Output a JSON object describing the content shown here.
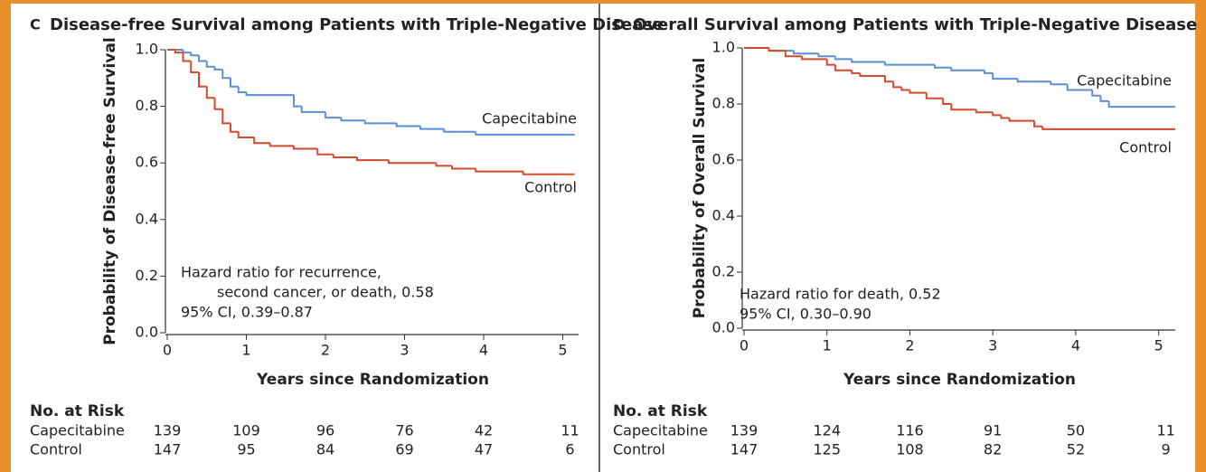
{
  "chart_data": [
    {
      "type": "step",
      "panel": "C",
      "title": "Disease-free Survival among Patients with Triple-Negative Disease",
      "xlabel": "Years since Randomization",
      "ylabel": "Probability of Disease-free Survival",
      "xlim": [
        0,
        5.2
      ],
      "ylim": [
        0,
        1
      ],
      "xticks": [
        0,
        1,
        2,
        3,
        4,
        5
      ],
      "yticks": [
        {
          "value": 0,
          "label": "0.0"
        },
        0.2,
        0.4,
        0.6,
        0.8,
        {
          "value": 1,
          "label": "1.0"
        }
      ],
      "series": [
        {
          "name": "Capecitabine",
          "color": "#5b8fd6",
          "x": [
            0,
            0.2,
            0.3,
            0.4,
            0.5,
            0.6,
            0.7,
            0.8,
            0.9,
            1.0,
            1.6,
            1.7,
            2.0,
            2.2,
            2.5,
            2.9,
            3.2,
            3.5,
            3.9,
            5.15
          ],
          "values": [
            1.0,
            0.99,
            0.98,
            0.96,
            0.94,
            0.93,
            0.9,
            0.87,
            0.85,
            0.84,
            0.8,
            0.78,
            0.76,
            0.75,
            0.74,
            0.73,
            0.72,
            0.71,
            0.7,
            0.7
          ]
        },
        {
          "name": "Control",
          "color": "#d44a2e",
          "x": [
            0,
            0.1,
            0.2,
            0.3,
            0.4,
            0.5,
            0.6,
            0.7,
            0.8,
            0.9,
            1.1,
            1.3,
            1.6,
            1.9,
            2.1,
            2.4,
            2.8,
            3.4,
            3.6,
            3.9,
            4.5,
            5.15
          ],
          "values": [
            1.0,
            0.99,
            0.96,
            0.92,
            0.87,
            0.83,
            0.79,
            0.74,
            0.71,
            0.69,
            0.67,
            0.66,
            0.65,
            0.63,
            0.62,
            0.61,
            0.6,
            0.59,
            0.58,
            0.57,
            0.56,
            0.56
          ]
        }
      ],
      "annotation": [
        "Hazard ratio for recurrence,",
        "second cancer, or death, 0.58",
        "95% CI, 0.39–0.87"
      ],
      "risk_table": {
        "title": "No. at Risk",
        "rows": [
          {
            "name": "Capecitabine",
            "values": [
              139,
              109,
              96,
              76,
              42,
              11
            ]
          },
          {
            "name": "Control",
            "values": [
              147,
              95,
              84,
              69,
              47,
              6
            ]
          }
        ]
      }
    },
    {
      "type": "step",
      "panel": "D",
      "title": "Overall Survival among Patients with Triple-Negative Disease",
      "xlabel": "Years since Randomization",
      "ylabel": "Probability of Overall Survival",
      "xlim": [
        0,
        5.2
      ],
      "ylim": [
        0,
        1
      ],
      "xticks": [
        0,
        1,
        2,
        3,
        4,
        5
      ],
      "yticks": [
        {
          "value": 0,
          "label": "0.0"
        },
        0.2,
        0.4,
        0.6,
        0.8,
        {
          "value": 1,
          "label": "1.0"
        }
      ],
      "series": [
        {
          "name": "Capecitabine",
          "color": "#5b8fd6",
          "x": [
            0,
            0.3,
            0.6,
            0.9,
            1.1,
            1.3,
            1.7,
            2.3,
            2.5,
            2.9,
            3.0,
            3.3,
            3.7,
            3.9,
            4.2,
            4.3,
            4.4,
            5.2
          ],
          "values": [
            1.0,
            0.99,
            0.98,
            0.97,
            0.96,
            0.95,
            0.94,
            0.93,
            0.92,
            0.91,
            0.89,
            0.88,
            0.87,
            0.85,
            0.83,
            0.81,
            0.79,
            0.79
          ]
        },
        {
          "name": "Control",
          "color": "#d44a2e",
          "x": [
            0,
            0.3,
            0.5,
            0.7,
            1.0,
            1.1,
            1.3,
            1.4,
            1.7,
            1.8,
            1.9,
            2.0,
            2.2,
            2.4,
            2.5,
            2.8,
            3.0,
            3.1,
            3.2,
            3.5,
            3.6,
            5.2
          ],
          "values": [
            1.0,
            0.99,
            0.97,
            0.96,
            0.94,
            0.92,
            0.91,
            0.9,
            0.88,
            0.86,
            0.85,
            0.84,
            0.82,
            0.8,
            0.78,
            0.77,
            0.76,
            0.75,
            0.74,
            0.72,
            0.71,
            0.71
          ]
        }
      ],
      "annotation": [
        "Hazard ratio for death, 0.52",
        "95% CI, 0.30–0.90"
      ],
      "risk_table": {
        "title": "No. at Risk",
        "rows": [
          {
            "name": "Capecitabine",
            "values": [
              139,
              124,
              116,
              91,
              50,
              11
            ]
          },
          {
            "name": "Control",
            "values": [
              147,
              125,
              108,
              82,
              52,
              9
            ]
          }
        ]
      }
    }
  ]
}
